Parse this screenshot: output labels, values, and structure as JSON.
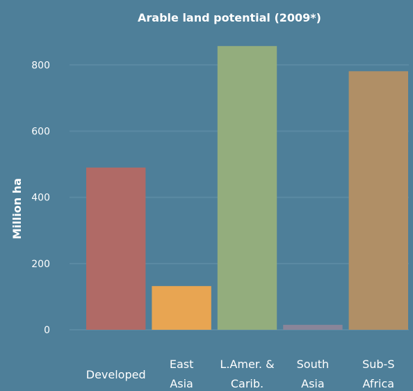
{
  "chart_data": {
    "type": "bar",
    "title": "Arable land potential (2009*)",
    "xlabel": "",
    "ylabel": "Million ha",
    "ylim": [
      0,
      870
    ],
    "yticks": [
      0,
      200,
      400,
      600,
      800
    ],
    "grid": true,
    "legend": "none",
    "categories": [
      [
        "Developed"
      ],
      [
        "East",
        "Asia"
      ],
      [
        "L.Amer. &",
        "Carib."
      ],
      [
        "South",
        "Asia"
      ],
      [
        "Sub-S",
        "Africa"
      ]
    ],
    "values": [
      490,
      132,
      857,
      15,
      781
    ],
    "colors": [
      "#b06a66",
      "#e8a552",
      "#93ad7d",
      "#8a8599",
      "#b08f66"
    ]
  }
}
